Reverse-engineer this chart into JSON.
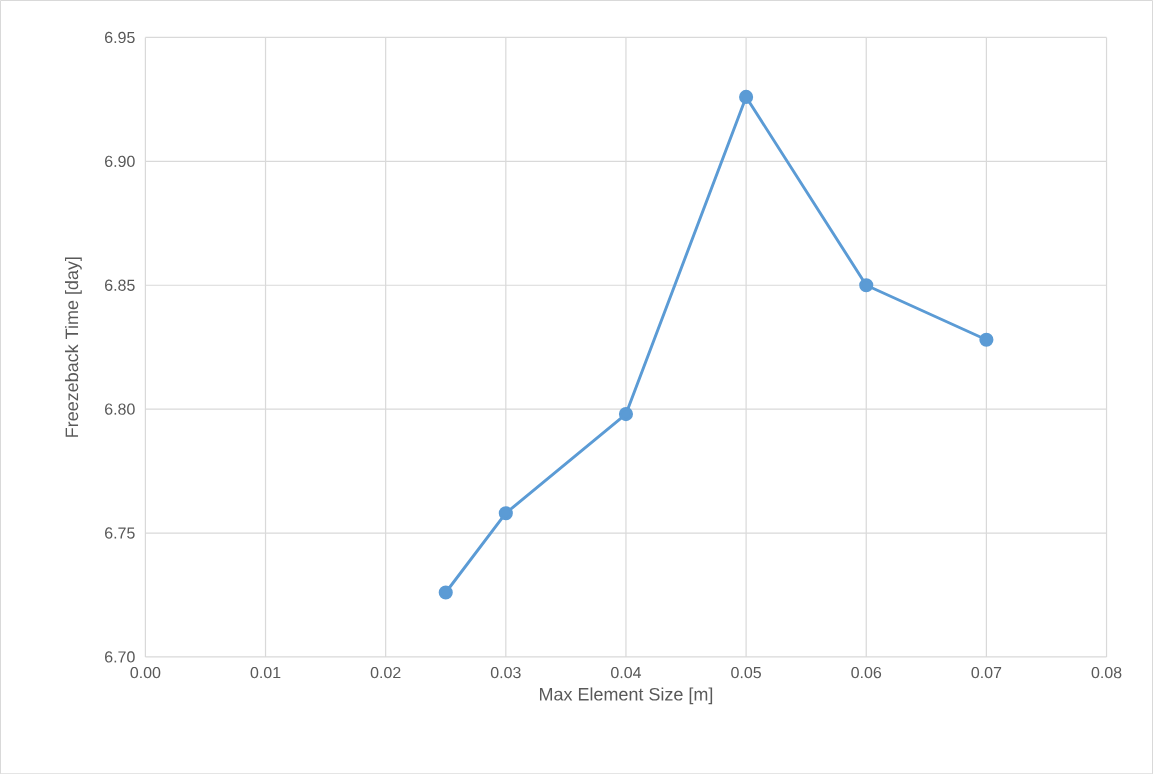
{
  "chart_data": {
    "type": "line",
    "xlabel": "Max Element Size [m]",
    "ylabel": "Freezeback Time [day]",
    "x": [
      0.025,
      0.03,
      0.04,
      0.05,
      0.06,
      0.07
    ],
    "series": [
      {
        "color": "#5b9bd5",
        "values": [
          6.726,
          6.758,
          6.798,
          6.926,
          6.85,
          6.828
        ]
      }
    ],
    "xlim": [
      0,
      0.08
    ],
    "ylim": [
      6.7,
      6.95
    ],
    "xticks": [
      {
        "value": 0,
        "label": "0.00"
      },
      {
        "value": 0.01,
        "label": "0.01"
      },
      {
        "value": 0.02,
        "label": "0.02"
      },
      {
        "value": 0.03,
        "label": "0.03"
      },
      {
        "value": 0.04,
        "label": "0.04"
      },
      {
        "value": 0.05,
        "label": "0.05"
      },
      {
        "value": 0.06,
        "label": "0.06"
      },
      {
        "value": 0.07,
        "label": "0.07"
      },
      {
        "value": 0.08,
        "label": "0.08"
      }
    ],
    "yticks": [
      {
        "value": 6.7,
        "label": "6.70"
      },
      {
        "value": 6.75,
        "label": "6.75"
      },
      {
        "value": 6.8,
        "label": "6.80"
      },
      {
        "value": 6.85,
        "label": "6.85"
      },
      {
        "value": 6.9,
        "label": "6.90"
      },
      {
        "value": 6.95,
        "label": "6.95"
      }
    ],
    "grid": true,
    "marker": "circle",
    "line_style": "solid"
  }
}
